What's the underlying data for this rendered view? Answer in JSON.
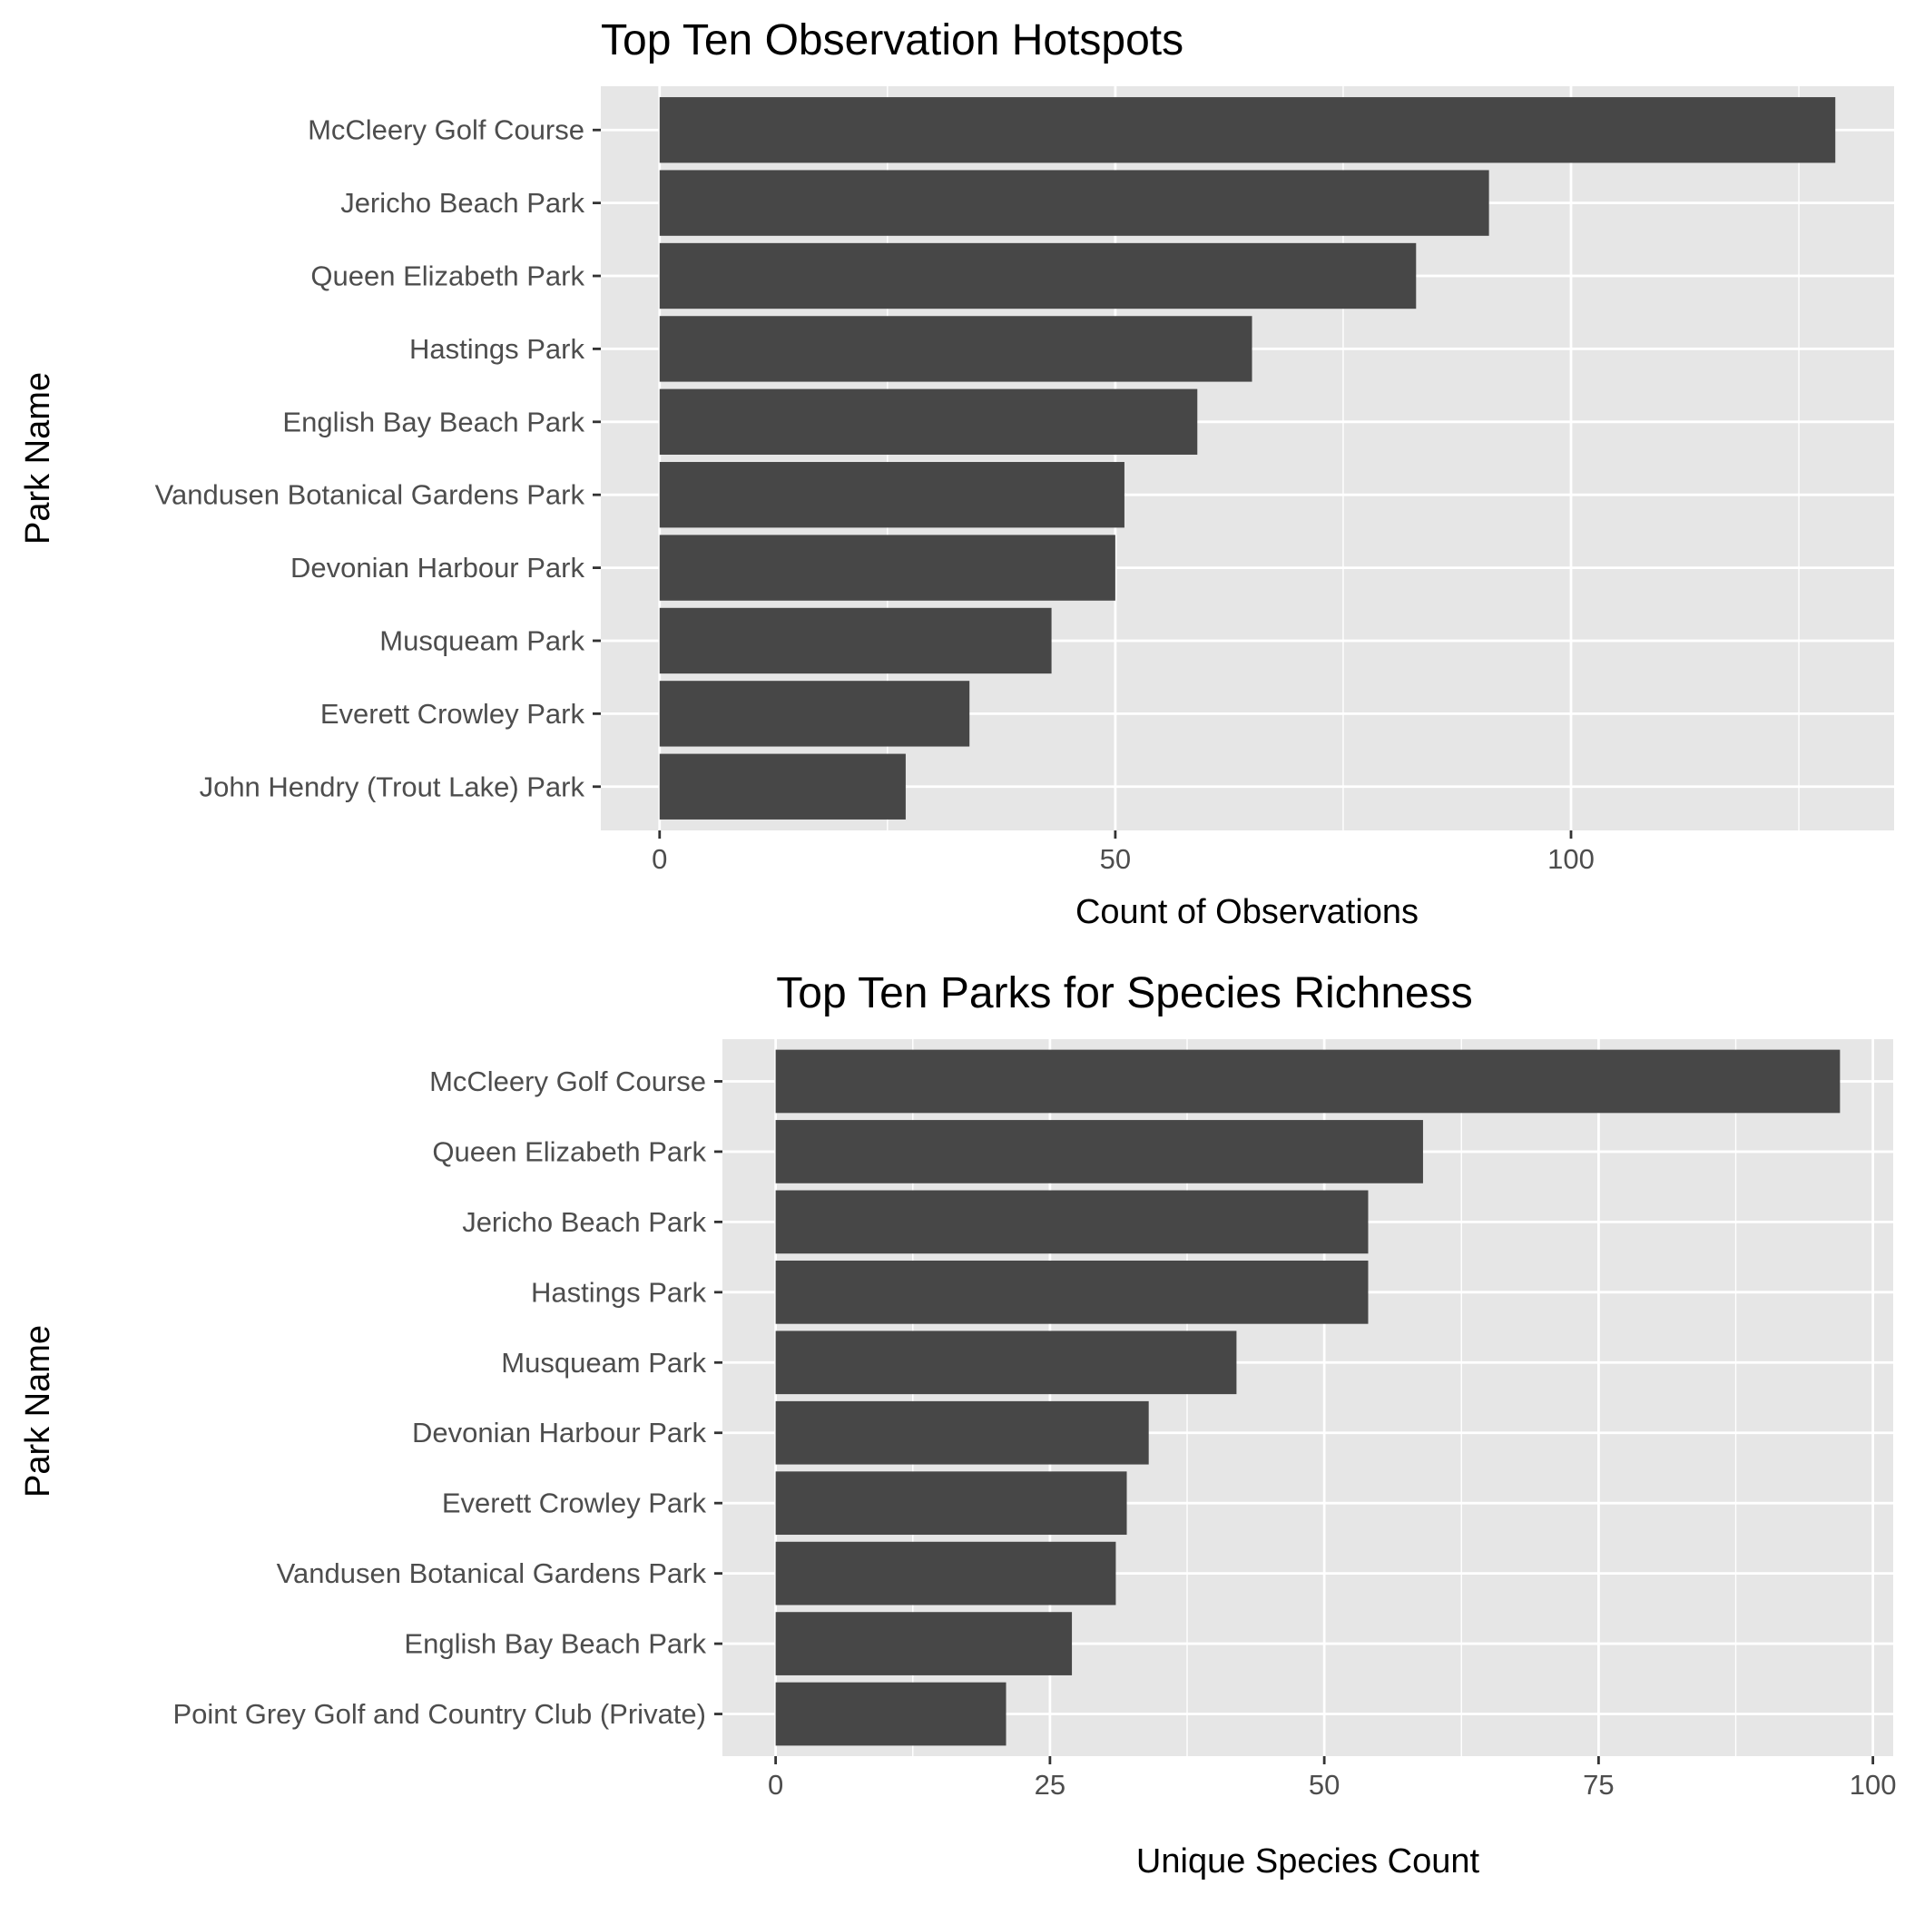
{
  "chart_data": [
    {
      "type": "bar",
      "orientation": "horizontal",
      "title": "Top Ten Observation Hotspots",
      "xlabel": "Count of Observations",
      "ylabel": "Park Name",
      "categories": [
        "McCleery Golf Course",
        "Jericho Beach Park",
        "Queen Elizabeth Park",
        "Hastings Park",
        "English Bay Beach Park",
        "Vandusen Botanical Gardens Park",
        "Devonian Harbour Park",
        "Musqueam Park",
        "Everett Crowley Park",
        "John Hendry (Trout Lake) Park"
      ],
      "values": [
        129,
        91,
        83,
        65,
        59,
        51,
        50,
        43,
        34,
        27
      ],
      "xlim": [
        -6.45,
        135.45
      ],
      "xticks": [
        0,
        50,
        100
      ],
      "xtick_labels": [
        "0",
        "50",
        "100"
      ],
      "minor_ticks": [
        25,
        75,
        125
      ],
      "bar_color": "#474747",
      "panel_color": "#e6e6e6",
      "grid": true,
      "legend": "none"
    },
    {
      "type": "bar",
      "orientation": "horizontal",
      "title": "Top Ten Parks for Species Richness",
      "xlabel": "Unique Species Count",
      "ylabel": "Park Name",
      "categories": [
        "McCleery Golf Course",
        "Queen Elizabeth Park",
        "Jericho Beach Park",
        "Hastings Park",
        "Musqueam Park",
        "Devonian Harbour Park",
        "Everett Crowley Park",
        "Vandusen Botanical Gardens Park",
        "English Bay Beach Park",
        "Point Grey Golf and Country Club (Private)"
      ],
      "values": [
        97,
        59,
        54,
        54,
        42,
        34,
        32,
        31,
        27,
        21
      ],
      "xlim": [
        -4.85,
        101.85
      ],
      "xticks": [
        0,
        25,
        50,
        75,
        100
      ],
      "xtick_labels": [
        "0",
        "25",
        "50",
        "75",
        "100"
      ],
      "minor_ticks": [
        12.5,
        37.5,
        62.5,
        87.5
      ],
      "bar_color": "#474747",
      "panel_color": "#e6e6e6",
      "grid": true,
      "legend": "none"
    }
  ]
}
